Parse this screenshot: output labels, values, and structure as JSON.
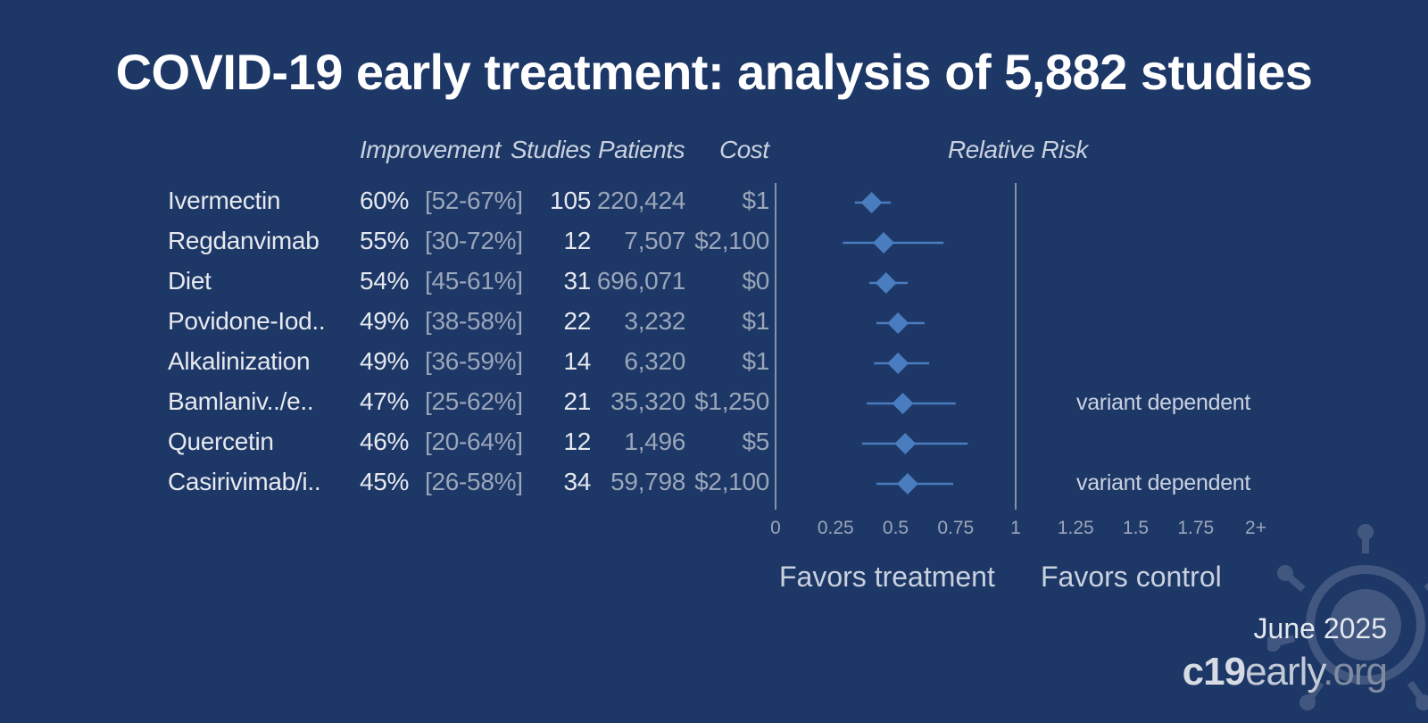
{
  "title": "COVID-19 early treatment: analysis of 5,882 studies",
  "headers": {
    "improvement": "Improvement",
    "studies": "Studies",
    "patients": "Patients",
    "cost": "Cost",
    "relative_risk": "Relative Risk"
  },
  "rows": [
    {
      "name": "Ivermectin",
      "improvement": "60%",
      "ci": "[52-67%]",
      "studies": "105",
      "patients": "220,424",
      "cost": "$1",
      "note": ""
    },
    {
      "name": "Regdanvimab",
      "improvement": "55%",
      "ci": "[30-72%]",
      "studies": "12",
      "patients": "7,507",
      "cost": "$2,100",
      "note": ""
    },
    {
      "name": "Diet",
      "improvement": "54%",
      "ci": "[45-61%]",
      "studies": "31",
      "patients": "696,071",
      "cost": "$0",
      "note": ""
    },
    {
      "name": "Povidone-Iod..",
      "improvement": "49%",
      "ci": "[38-58%]",
      "studies": "22",
      "patients": "3,232",
      "cost": "$1",
      "note": ""
    },
    {
      "name": "Alkalinization",
      "improvement": "49%",
      "ci": "[36-59%]",
      "studies": "14",
      "patients": "6,320",
      "cost": "$1",
      "note": ""
    },
    {
      "name": "Bamlaniv../e..",
      "improvement": "47%",
      "ci": "[25-62%]",
      "studies": "21",
      "patients": "35,320",
      "cost": "$1,250",
      "note": "variant dependent"
    },
    {
      "name": "Quercetin",
      "improvement": "46%",
      "ci": "[20-64%]",
      "studies": "12",
      "patients": "1,496",
      "cost": "$5",
      "note": ""
    },
    {
      "name": "Casirivimab/i..",
      "improvement": "45%",
      "ci": "[26-58%]",
      "studies": "34",
      "patients": "59,798",
      "cost": "$2,100",
      "note": "variant dependent"
    }
  ],
  "chart_data": {
    "type": "scatter",
    "title": "Relative Risk",
    "categories": [
      "Ivermectin",
      "Regdanvimab",
      "Diet",
      "Povidone-Iod..",
      "Alkalinization",
      "Bamlaniv../e..",
      "Quercetin",
      "Casirivimab/i.."
    ],
    "relative_risk": [
      0.4,
      0.45,
      0.46,
      0.51,
      0.51,
      0.53,
      0.54,
      0.55
    ],
    "ci_low": [
      0.33,
      0.28,
      0.39,
      0.42,
      0.41,
      0.38,
      0.36,
      0.42
    ],
    "ci_high": [
      0.48,
      0.7,
      0.55,
      0.62,
      0.64,
      0.75,
      0.8,
      0.74
    ],
    "xlim": [
      0,
      2
    ],
    "x_ticks": [
      "0",
      "0.25",
      "0.5",
      "0.75",
      "1",
      "1.25",
      "1.5",
      "1.75",
      "2+"
    ],
    "reference_line": 1,
    "colors": {
      "marker": "#4a7dc0",
      "axis": "#8593a8"
    }
  },
  "favors": {
    "treatment": "Favors treatment",
    "control": "Favors control"
  },
  "footer": {
    "date": "June 2025",
    "brand_part1": "c19",
    "brand_part2": "early",
    "brand_part3": ".org"
  }
}
